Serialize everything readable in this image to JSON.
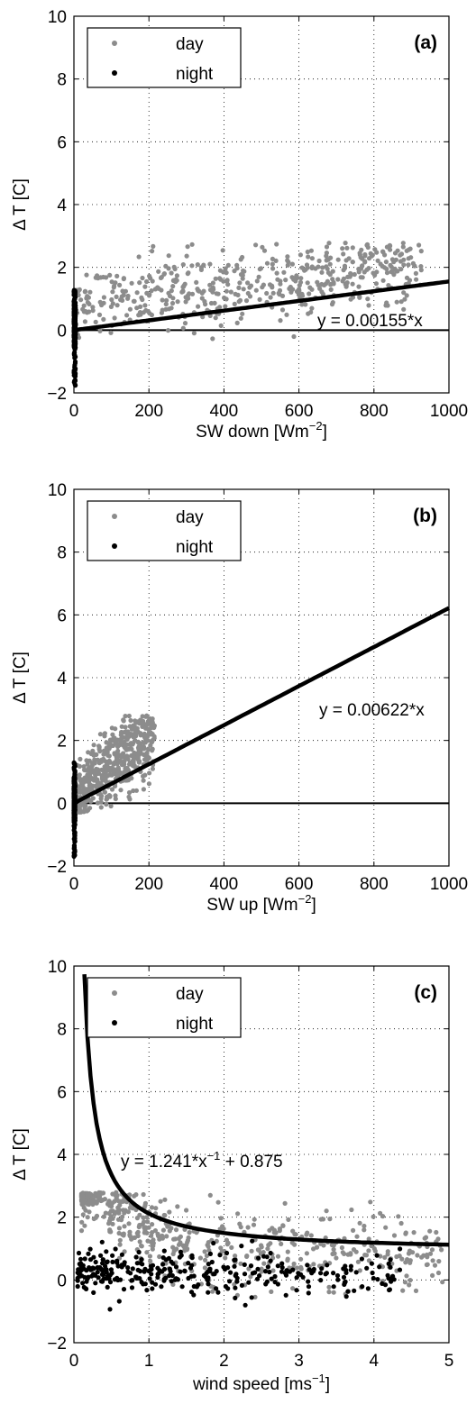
{
  "chart_data": [
    {
      "type": "scatter",
      "panel_label": "(a)",
      "xlabel": "SW down [Wm",
      "xlabel_sup": "−2",
      "xlabel_end": "]",
      "ylabel": "Δ T [C]",
      "xlim": [
        0,
        1000
      ],
      "ylim": [
        -2,
        10
      ],
      "xticks": [
        "0",
        "200",
        "400",
        "600",
        "800",
        "1000"
      ],
      "yticks": [
        "−2",
        "0",
        "2",
        "4",
        "6",
        "8",
        "10"
      ],
      "xtick_values": [
        0,
        200,
        400,
        600,
        800,
        1000
      ],
      "ytick_values": [
        -2,
        0,
        2,
        4,
        6,
        8,
        10
      ],
      "grid": true,
      "legend": {
        "placement": "top-left",
        "entries": [
          "day",
          "night"
        ]
      },
      "series": [
        {
          "name": "day",
          "color": "#8c8c8c",
          "x_range": [
            0,
            930
          ],
          "trend": "linear",
          "trend_a": 0.0015,
          "trend_b": 0.75,
          "spread": 0.55,
          "y_floor": -0.3
        },
        {
          "name": "night",
          "color": "#000000",
          "x_range": [
            0,
            4
          ],
          "y_range": [
            -1.8,
            1.3
          ]
        }
      ],
      "fit": {
        "type": "linear",
        "slope": 0.00155,
        "intercept": 0,
        "x_range": [
          0,
          1000
        ],
        "equation": "y = 0.00155*x"
      },
      "reference_line": {
        "y": 0
      }
    },
    {
      "type": "scatter",
      "panel_label": "(b)",
      "xlabel": "SW up [Wm",
      "xlabel_sup": "−2",
      "xlabel_end": "]",
      "ylabel": "Δ T [C]",
      "xlim": [
        0,
        1000
      ],
      "ylim": [
        -2,
        10
      ],
      "xticks": [
        "0",
        "200",
        "400",
        "600",
        "800",
        "1000"
      ],
      "yticks": [
        "−2",
        "0",
        "2",
        "4",
        "6",
        "8",
        "10"
      ],
      "xtick_values": [
        0,
        200,
        400,
        600,
        800,
        1000
      ],
      "ytick_values": [
        -2,
        0,
        2,
        4,
        6,
        8,
        10
      ],
      "grid": true,
      "legend": {
        "placement": "top-left",
        "entries": [
          "day",
          "night"
        ]
      },
      "series": [
        {
          "name": "day",
          "color": "#8c8c8c",
          "x_range": [
            0,
            215
          ],
          "trend": "linear",
          "trend_a": 0.0085,
          "trend_b": 0.3,
          "spread": 0.55,
          "y_floor": -0.3
        },
        {
          "name": "night",
          "color": "#000000",
          "x_range": [
            0,
            3
          ],
          "y_range": [
            -1.7,
            1.3
          ]
        }
      ],
      "fit": {
        "type": "linear",
        "slope": 0.00622,
        "intercept": 0,
        "x_range": [
          0,
          1000
        ],
        "equation": "y = 0.00622*x"
      },
      "reference_line": {
        "y": 0
      }
    },
    {
      "type": "scatter",
      "panel_label": "(c)",
      "xlabel": "wind speed [ms",
      "xlabel_sup": "−1",
      "xlabel_end": "]",
      "ylabel": "Δ T [C]",
      "xlim": [
        0,
        5
      ],
      "ylim": [
        -2,
        10
      ],
      "xticks": [
        "0",
        "1",
        "2",
        "3",
        "4",
        "5"
      ],
      "yticks": [
        "−2",
        "0",
        "2",
        "4",
        "6",
        "8",
        "10"
      ],
      "xtick_values": [
        0,
        1,
        2,
        3,
        4,
        5
      ],
      "ytick_values": [
        -2,
        0,
        2,
        4,
        6,
        8,
        10
      ],
      "grid": true,
      "legend": {
        "placement": "top-left",
        "entries": [
          "day",
          "night"
        ]
      },
      "series": [
        {
          "name": "day",
          "color": "#8c8c8c",
          "x_range": [
            0.1,
            4.95
          ],
          "trend": "inverse",
          "trend_a": 0.9,
          "trend_b": 0.55,
          "spread": 0.6,
          "y_floor": -0.6
        },
        {
          "name": "night",
          "color": "#000000",
          "x_range": [
            0.05,
            4.35
          ],
          "trend": "flat",
          "trend_b": 0.25,
          "spread": 0.35,
          "y_floor": -1.75
        }
      ],
      "fit": {
        "type": "inverse",
        "a": 1.241,
        "b": 0.875,
        "x_range": [
          0.14,
          5
        ],
        "equation": "y = 1.241*x",
        "equation_sup": "−1",
        "equation_end": " + 0.875"
      },
      "reference_line": null
    }
  ]
}
